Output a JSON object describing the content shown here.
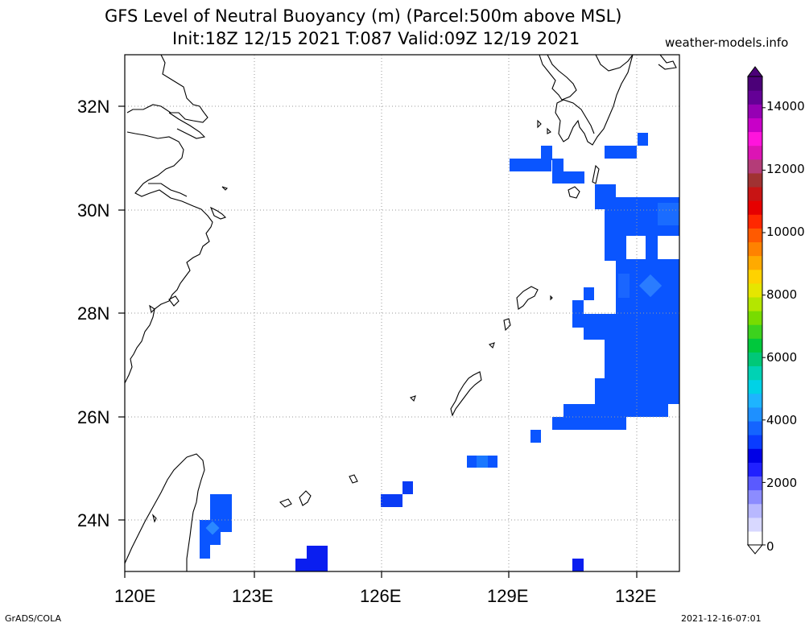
{
  "title_line1": "GFS Level of Neutral Buoyancy (m) (Parcel:500m above MSL)",
  "title_line2": "Init:18Z 12/15 2021 T:087 Valid:09Z 12/19 2021",
  "source": "weather-models.info",
  "footer_left": "GrADS/COLA",
  "footer_right": "2021-12-16-07:01",
  "map": {
    "lon_range": [
      120,
      133
    ],
    "lat_range": [
      23,
      33
    ],
    "lon_ticks": [
      "120E",
      "123E",
      "126E",
      "129E",
      "132E"
    ],
    "lat_ticks": [
      "24N",
      "26N",
      "28N",
      "30N",
      "32N"
    ],
    "grid": "dotted"
  },
  "colorbar": {
    "range": [
      0,
      15000
    ],
    "ticks": [
      "0",
      "2000",
      "4000",
      "6000",
      "8000",
      "10000",
      "12000",
      "14000"
    ],
    "colors": [
      "#ffffff",
      "#d8d8ff",
      "#b8b8ff",
      "#8c8cff",
      "#5a5aff",
      "#2020ff",
      "#0000e6",
      "#0a3cff",
      "#1464ff",
      "#1e90ff",
      "#1eb4ff",
      "#00d2e6",
      "#00d2b4",
      "#00c878",
      "#00c83c",
      "#3cd21e",
      "#78dc00",
      "#b4e600",
      "#e6e600",
      "#ffd200",
      "#ffaa00",
      "#ff8200",
      "#ff5a00",
      "#ff2800",
      "#e60000",
      "#c81414",
      "#a03232",
      "#b43c78",
      "#dc14b4",
      "#ff14dc",
      "#c800c8",
      "#9600b4",
      "#640096",
      "#4b0078"
    ]
  },
  "field_colors": {
    "main": "#0a55ff",
    "deep": "#0a1ef0",
    "light": "#1a78ff"
  }
}
